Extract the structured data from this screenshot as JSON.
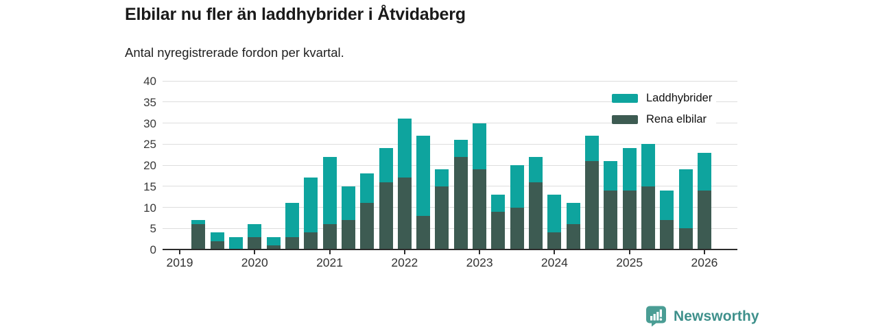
{
  "header": {
    "title": "Elbilar nu fler än laddhybrider i Åtvidaberg",
    "subtitle": "Antal nyregistrerade fordon per kvartal."
  },
  "chart_data": {
    "type": "bar",
    "stacked": true,
    "title": "Elbilar nu fler än laddhybrider i Åtvidaberg",
    "subtitle": "Antal nyregistrerade fordon per kvartal.",
    "xlabel": "",
    "ylabel": "",
    "ylim": [
      0,
      40
    ],
    "yticks": [
      0,
      5,
      10,
      15,
      20,
      25,
      30,
      35,
      40
    ],
    "grid": "horizontal",
    "legend_position": "top-right",
    "categories": [
      "2019 Q1",
      "2019 Q2",
      "2019 Q3",
      "2019 Q4",
      "2020 Q1",
      "2020 Q2",
      "2020 Q3",
      "2020 Q4",
      "2021 Q1",
      "2021 Q2",
      "2021 Q3",
      "2021 Q4",
      "2022 Q1",
      "2022 Q2",
      "2022 Q3",
      "2022 Q4",
      "2023 Q1",
      "2023 Q2",
      "2023 Q3",
      "2023 Q4",
      "2024 Q1",
      "2024 Q2",
      "2024 Q3",
      "2024 Q4",
      "2025 Q1",
      "2025 Q2",
      "2025 Q3",
      "2025 Q4",
      "2026 Q1"
    ],
    "x_ticks": [
      {
        "label": "2019",
        "index": 0
      },
      {
        "label": "2020",
        "index": 4
      },
      {
        "label": "2021",
        "index": 8
      },
      {
        "label": "2022",
        "index": 12
      },
      {
        "label": "2023",
        "index": 16
      },
      {
        "label": "2024",
        "index": 20
      },
      {
        "label": "2025",
        "index": 24
      },
      {
        "label": "2026",
        "index": 28
      }
    ],
    "series": [
      {
        "name": "Laddhybrider",
        "color": "#0ea49e",
        "stack_position": "top",
        "values": [
          0,
          1,
          2,
          3,
          3,
          2,
          8,
          13,
          16,
          8,
          7,
          8,
          14,
          19,
          4,
          4,
          11,
          4,
          10,
          6,
          9,
          5,
          6,
          7,
          10,
          10,
          7,
          14,
          9
        ]
      },
      {
        "name": "Rena elbilar",
        "color": "#3d5b52",
        "stack_position": "bottom",
        "values": [
          0,
          6,
          2,
          0,
          3,
          1,
          3,
          4,
          6,
          7,
          11,
          16,
          17,
          8,
          15,
          22,
          19,
          9,
          10,
          16,
          4,
          6,
          21,
          14,
          14,
          15,
          7,
          5,
          14
        ]
      }
    ],
    "totals": [
      0,
      7,
      4,
      3,
      6,
      3,
      11,
      17,
      22,
      15,
      18,
      24,
      31,
      27,
      19,
      26,
      30,
      13,
      20,
      22,
      13,
      11,
      27,
      21,
      24,
      25,
      14,
      19,
      23
    ]
  },
  "colors": {
    "laddhybrider": "#0ea49e",
    "rena_elbilar": "#3d5b52",
    "grid": "#dddddd",
    "axis": "#2b2b2b",
    "brand_teal": "#3e908b",
    "logo_badge": "#4a9d94"
  },
  "footer": {
    "brand": "Newsworthy"
  }
}
